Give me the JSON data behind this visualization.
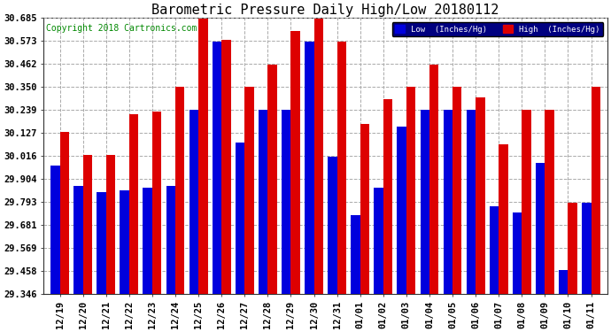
{
  "title": "Barometric Pressure Daily High/Low 20180112",
  "copyright": "Copyright 2018 Cartronics.com",
  "legend_low": "Low  (Inches/Hg)",
  "legend_high": "High  (Inches/Hg)",
  "dates": [
    "12/19",
    "12/20",
    "12/21",
    "12/22",
    "12/23",
    "12/24",
    "12/25",
    "12/26",
    "12/27",
    "12/28",
    "12/29",
    "12/30",
    "12/31",
    "01/01",
    "01/02",
    "01/03",
    "01/04",
    "01/05",
    "01/06",
    "01/07",
    "01/08",
    "01/09",
    "01/10",
    "01/11"
  ],
  "low_values": [
    29.97,
    29.87,
    29.84,
    29.85,
    29.86,
    29.87,
    30.24,
    30.57,
    30.08,
    30.24,
    30.24,
    30.57,
    30.01,
    29.73,
    29.86,
    30.16,
    30.24,
    30.24,
    30.24,
    29.77,
    29.74,
    29.98,
    29.46,
    29.79
  ],
  "high_values": [
    30.13,
    30.02,
    30.02,
    30.22,
    30.23,
    30.35,
    30.68,
    30.58,
    30.35,
    30.46,
    30.62,
    30.68,
    30.57,
    30.17,
    30.29,
    30.35,
    30.46,
    30.35,
    30.3,
    30.07,
    30.24,
    30.24,
    29.79,
    30.35
  ],
  "ymin": 29.346,
  "ymax": 30.685,
  "yticks": [
    29.346,
    29.458,
    29.569,
    29.681,
    29.793,
    29.904,
    30.016,
    30.127,
    30.239,
    30.35,
    30.462,
    30.573,
    30.685
  ],
  "low_color": "#0000dd",
  "high_color": "#dd0000",
  "background_color": "#ffffff",
  "grid_color": "#aaaaaa",
  "title_fontsize": 11,
  "tick_fontsize": 7.5,
  "copyright_fontsize": 7,
  "bar_width": 0.4
}
